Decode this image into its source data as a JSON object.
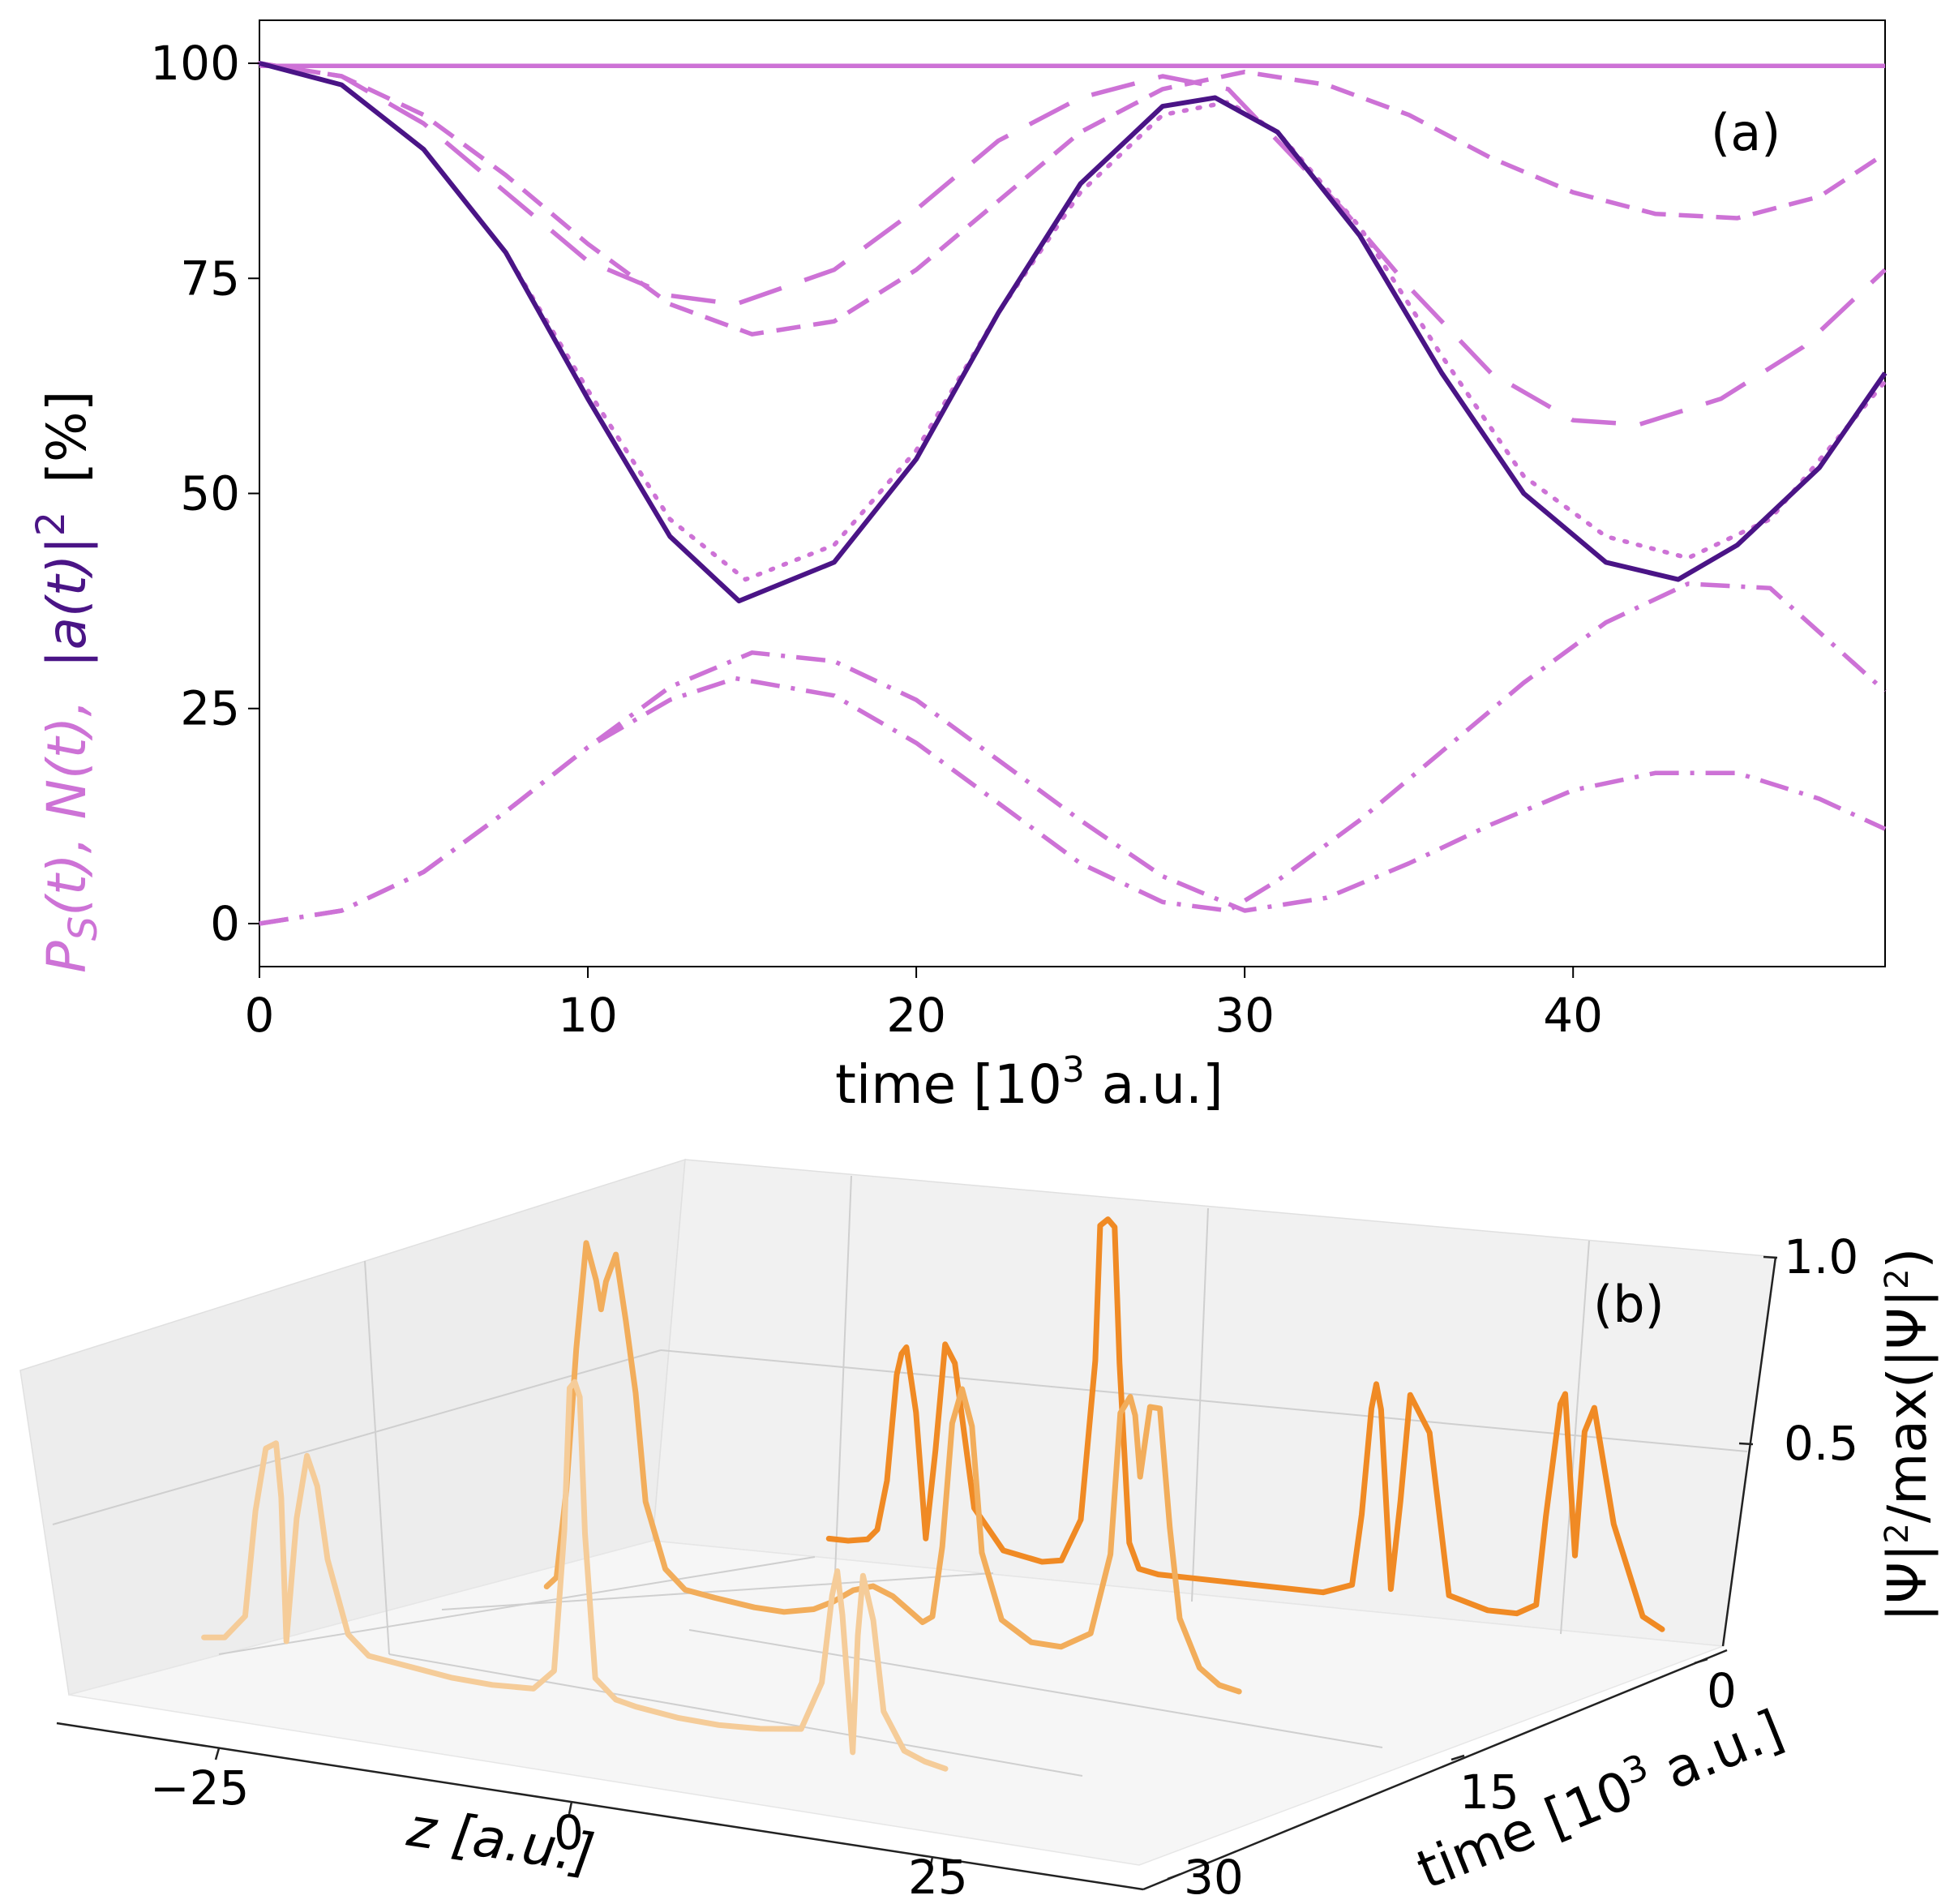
{
  "chart_data": [
    {
      "panel_label": "(a)",
      "type": "line",
      "xlabel": "time [10",
      "xlabel_sup": "3",
      "xlabel_end": " a.u.]",
      "ylabel_parts": [
        "P",
        "S",
        "(t), N(t), ",
        "|a(t)|",
        "2",
        " [%]"
      ],
      "xlim": [
        0,
        49.5
      ],
      "ylim": [
        -5,
        105
      ],
      "xticks": [
        "0",
        "10",
        "20",
        "30",
        "40"
      ],
      "yticks": [
        "0",
        "25",
        "50",
        "75",
        "100"
      ],
      "colors": {
        "dark": "#4a1486",
        "light": "#cd72d6"
      },
      "series": [
        {
          "name": "|a(t)|^2",
          "style": "solid",
          "color": "#4a1486",
          "x": [
            0,
            2.5,
            5,
            7.5,
            10,
            12.5,
            14.6,
            17.5,
            20,
            22.5,
            25,
            27.5,
            29.1,
            31,
            33.5,
            36,
            38.5,
            41,
            43.2,
            45,
            47.5,
            49.5
          ],
          "y": [
            100,
            97.5,
            90,
            78,
            61,
            45,
            37.5,
            42,
            54,
            71,
            86,
            95,
            96,
            92,
            80,
            64,
            50,
            42,
            40,
            44,
            53,
            64
          ]
        },
        {
          "name": "P_S(t) solid",
          "style": "solid",
          "color": "#cd72d6",
          "x": [
            0,
            49.5
          ],
          "y": [
            99.7,
            99.7
          ]
        },
        {
          "name": "P_S(t) dotted",
          "style": "dotted",
          "color": "#cd72d6",
          "x": [
            0,
            2.5,
            5,
            7.5,
            10,
            12.5,
            14.8,
            17.5,
            20,
            22.5,
            25,
            27.5,
            29.5,
            31,
            33.5,
            36,
            38.5,
            41,
            43.5,
            46,
            49.5
          ],
          "y": [
            100,
            97.5,
            90,
            78,
            62,
            47,
            40,
            44,
            55,
            71,
            85,
            94,
            95.5,
            92,
            81,
            66,
            52,
            45,
            42.5,
            47,
            63
          ]
        },
        {
          "name": "P_S(t) short dash",
          "style": "dash-short",
          "color": "#cd72d6",
          "x": [
            0,
            2.5,
            5,
            7.5,
            10,
            12.5,
            15,
            17.5,
            20,
            22.5,
            25,
            27.5,
            30,
            32.5,
            35,
            37.5,
            40,
            42.5,
            45,
            47.5,
            49.5
          ],
          "y": [
            100,
            98.5,
            94,
            87,
            79,
            72,
            68.5,
            70,
            76,
            84,
            92,
            97,
            99,
            97.5,
            94,
            89,
            85,
            82.5,
            82,
            84.5,
            89.5
          ]
        },
        {
          "name": "P_S(t) long dash",
          "style": "dash-long",
          "color": "#cd72d6",
          "x": [
            0,
            2.5,
            5,
            7.5,
            10,
            12.5,
            14.5,
            17.5,
            20,
            22.5,
            25,
            27.5,
            29.5,
            31,
            33,
            35,
            37.5,
            40,
            42,
            44.5,
            47,
            49.5
          ],
          "y": [
            100,
            98.5,
            93,
            85,
            77,
            73,
            72,
            76,
            83,
            91,
            96,
            98.5,
            97,
            91,
            83,
            74,
            64,
            58.5,
            58,
            61,
            67,
            76
          ]
        },
        {
          "name": "N(t) dash-dot 1",
          "style": "dashdot",
          "color": "#cd72d6",
          "x": [
            0,
            2.5,
            5,
            7.5,
            10,
            12.5,
            15,
            17.5,
            20,
            22.5,
            25,
            27.5,
            30,
            32.5,
            35,
            37.5,
            40,
            42.5,
            45,
            47.5,
            49.5
          ],
          "y": [
            0,
            1.5,
            6,
            13,
            20.5,
            27.5,
            31.5,
            30.5,
            26,
            19,
            12,
            5.5,
            1.5,
            3,
            7,
            11.5,
            15.5,
            17.5,
            17.5,
            14.5,
            11
          ]
        },
        {
          "name": "N(t) dash-dot 2",
          "style": "dashdot",
          "color": "#cd72d6",
          "x": [
            0,
            2.5,
            5,
            7.5,
            10,
            12.5,
            14.5,
            17.5,
            20,
            22.5,
            25,
            27.5,
            29.5,
            31,
            33.5,
            36,
            38.5,
            41,
            43.5,
            46,
            49.5
          ],
          "y": [
            0,
            1.5,
            6,
            13,
            20.5,
            26,
            28.5,
            26.5,
            21,
            14,
            7,
            2.5,
            1.5,
            5,
            12,
            20,
            28,
            35,
            39.5,
            39,
            27
          ]
        }
      ]
    },
    {
      "panel_label": "(b)",
      "type": "line",
      "projection": "3d",
      "xlabel": "z [a.u.]",
      "ylabel": "time [10",
      "ylabel_sup": "3",
      "ylabel_end": " a.u.]",
      "zlabel_parts": [
        "|Ψ|",
        "2",
        "/max(|Ψ|",
        "2",
        ")"
      ],
      "xlim": [
        -35,
        35
      ],
      "ylim": [
        0,
        30
      ],
      "zlim": [
        0,
        1
      ],
      "xticks": [
        "−25",
        "0",
        "25"
      ],
      "yticks": [
        "0",
        "15",
        "30"
      ],
      "zticks": [
        "0.5",
        "1.0"
      ],
      "colors": {
        "t0": "#f08a24",
        "t15": "#f2ad5b",
        "t30": "#f5cc99"
      },
      "series": [
        {
          "name": "t = 0",
          "time": 0,
          "color": "#f08a24",
          "z": [
            -36,
            -34,
            -32,
            -31,
            -30,
            -29,
            -28.5,
            -28,
            -27,
            -26,
            -25,
            -24,
            -23,
            -21,
            -18,
            -14,
            -12,
            -10,
            -8.5,
            -8,
            -7.2,
            -6.5,
            -6,
            -5,
            -4,
            -2,
            0,
            5,
            10,
            15,
            18,
            19,
            20,
            20.5,
            21,
            22,
            23,
            24,
            26,
            28,
            32,
            35,
            37,
            38,
            39.5,
            40,
            41,
            42,
            43,
            45,
            48,
            50
          ],
          "v": [
            0.02,
            0.02,
            0.03,
            0.06,
            0.2,
            0.5,
            0.56,
            0.58,
            0.4,
            0.05,
            0.3,
            0.6,
            0.55,
            0.15,
            0.04,
            0.02,
            0.03,
            0.15,
            0.6,
            0.98,
            1.0,
            0.98,
            0.6,
            0.1,
            0.03,
            0.02,
            0.02,
            0.02,
            0.02,
            0.02,
            0.05,
            0.25,
            0.55,
            0.62,
            0.55,
            0.05,
            0.3,
            0.6,
            0.5,
            0.05,
            0.02,
            0.02,
            0.05,
            0.3,
            0.62,
            0.65,
            0.2,
            0.55,
            0.62,
            0.3,
            0.05,
            0.02
          ]
        },
        {
          "name": "t = 15",
          "time": 15,
          "color": "#f2ad5b",
          "z": [
            -39,
            -38,
            -37,
            -36,
            -35,
            -34,
            -33.5,
            -33,
            -32,
            -31,
            -30,
            -29,
            -27,
            -25,
            -22,
            -18,
            -15,
            -12,
            -10,
            -8,
            -6,
            -4,
            -2,
            -1,
            0,
            1,
            2,
            3,
            4,
            5,
            7,
            10,
            13,
            16,
            18,
            19,
            20,
            20.5,
            21,
            22,
            23,
            24,
            25,
            27,
            29,
            31
          ],
          "v": [
            0.02,
            0.05,
            0.3,
            0.7,
            1.0,
            0.9,
            0.82,
            0.9,
            0.98,
            0.8,
            0.6,
            0.3,
            0.12,
            0.07,
            0.06,
            0.05,
            0.05,
            0.07,
            0.1,
            0.14,
            0.16,
            0.14,
            0.1,
            0.08,
            0.1,
            0.3,
            0.65,
            0.75,
            0.65,
            0.3,
            0.12,
            0.07,
            0.07,
            0.12,
            0.35,
            0.75,
            0.8,
            0.75,
            0.58,
            0.78,
            0.78,
            0.45,
            0.2,
            0.07,
            0.03,
            0.02
          ]
        },
        {
          "name": "t = 30",
          "time": 30,
          "color": "#f5cc99",
          "z": [
            -42,
            -40,
            -38,
            -37,
            -36,
            -35,
            -34.5,
            -34,
            -33,
            -32,
            -31,
            -30,
            -28,
            -26,
            -22,
            -18,
            -14,
            -10,
            -8,
            -7,
            -6.5,
            -6,
            -5.5,
            -5,
            -4,
            -2,
            0,
            4,
            8,
            12,
            16,
            18,
            19,
            19.5,
            20,
            21,
            21.5,
            22,
            23,
            24,
            26,
            28,
            30
          ],
          "v": [
            0.02,
            0.03,
            0.1,
            0.4,
            0.58,
            0.6,
            0.45,
            0.05,
            0.4,
            0.58,
            0.5,
            0.3,
            0.1,
            0.05,
            0.04,
            0.03,
            0.03,
            0.04,
            0.1,
            0.5,
            0.9,
            0.92,
            0.88,
            0.5,
            0.1,
            0.05,
            0.04,
            0.03,
            0.03,
            0.04,
            0.06,
            0.2,
            0.45,
            0.52,
            0.4,
            0.02,
            0.35,
            0.52,
            0.4,
            0.15,
            0.05,
            0.03,
            0.02
          ]
        }
      ]
    }
  ]
}
